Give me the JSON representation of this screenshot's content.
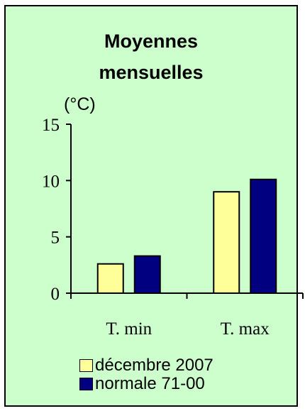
{
  "chart_data": {
    "type": "bar",
    "title_lines": [
      "Moyennes",
      "mensuelles"
    ],
    "unit_label": "(°C)",
    "categories": [
      "T. min",
      "T. max"
    ],
    "series": [
      {
        "name": "décembre 2007",
        "values": [
          2.6,
          9.0
        ],
        "color": "#ffff99"
      },
      {
        "name": "normale 71-00",
        "values": [
          3.3,
          10.1
        ],
        "color": "#000080"
      }
    ],
    "ylim": [
      0,
      15
    ],
    "y_ticks": [
      "0",
      "5",
      "10",
      "15"
    ],
    "grid": false,
    "legend_position": "bottom"
  }
}
